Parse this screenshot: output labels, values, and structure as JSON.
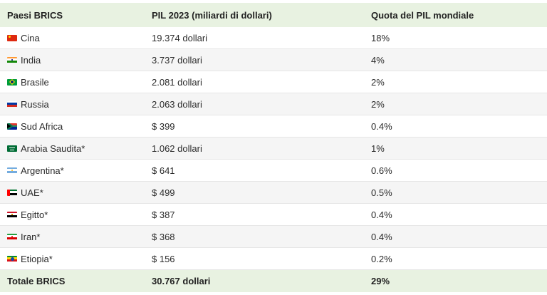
{
  "table": {
    "headers": {
      "country": "Paesi BRICS",
      "gdp": "PIL 2023 (miliardi di dollari)",
      "share": "Quota del PIL mondiale"
    },
    "rows": [
      {
        "flag": "china-flag-icon",
        "country": "Cina",
        "gdp": "19.374 dollari",
        "share": "18%"
      },
      {
        "flag": "india-flag-icon",
        "country": "India",
        "gdp": "3.737 dollari",
        "share": "4%"
      },
      {
        "flag": "brazil-flag-icon",
        "country": "Brasile",
        "gdp": "2.081 dollari",
        "share": "2%"
      },
      {
        "flag": "russia-flag-icon",
        "country": "Russia",
        "gdp": "2.063 dollari",
        "share": "2%"
      },
      {
        "flag": "south-africa-flag-icon",
        "country": "Sud Africa",
        "gdp": "$ 399",
        "share": "0.4%"
      },
      {
        "flag": "saudi-arabia-flag-icon",
        "country": "Arabia Saudita*",
        "gdp": "1.062 dollari",
        "share": "1%"
      },
      {
        "flag": "argentina-flag-icon",
        "country": "Argentina*",
        "gdp": "$ 641",
        "share": "0.6%"
      },
      {
        "flag": "uae-flag-icon",
        "country": "UAE*",
        "gdp": "$ 499",
        "share": "0.5%"
      },
      {
        "flag": "egypt-flag-icon",
        "country": "Egitto*",
        "gdp": "$ 387",
        "share": "0.4%"
      },
      {
        "flag": "iran-flag-icon",
        "country": "Iran*",
        "gdp": "$ 368",
        "share": "0.4%"
      },
      {
        "flag": "ethiopia-flag-icon",
        "country": "Etiopia*",
        "gdp": "$ 156",
        "share": "0.2%"
      }
    ],
    "total": {
      "country": "Totale BRICS",
      "gdp": "30.767 dollari",
      "share": "29%"
    }
  },
  "colors": {
    "header_bg": "#e8f2e1",
    "alt_row_bg": "#f5f5f5"
  }
}
